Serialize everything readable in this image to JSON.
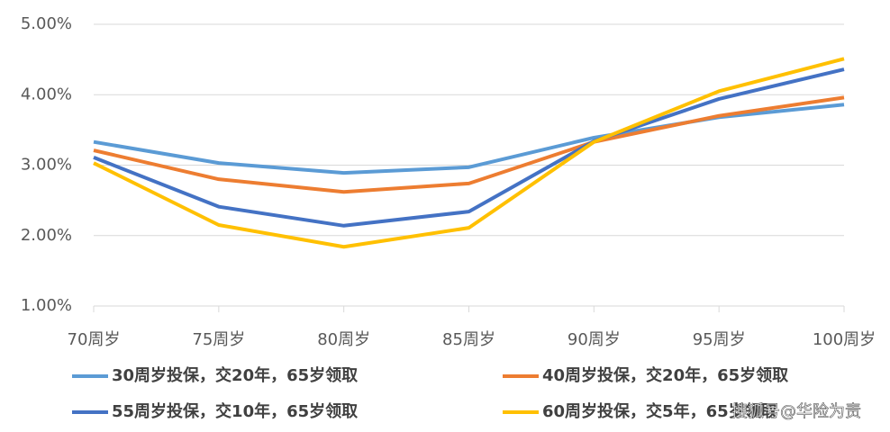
{
  "chart_data": {
    "type": "line",
    "categories": [
      "70周岁",
      "75周岁",
      "80周岁",
      "85周岁",
      "90周岁",
      "95周岁",
      "100周岁"
    ],
    "series": [
      {
        "name": "30周岁投保，交20年，65岁领取",
        "color": "#5b9bd5",
        "values": [
          3.33,
          3.03,
          2.89,
          2.97,
          3.39,
          3.68,
          3.86
        ]
      },
      {
        "name": "40周岁投保，交20年，65岁领取",
        "color": "#ed7d31",
        "values": [
          3.21,
          2.8,
          2.62,
          2.74,
          3.33,
          3.7,
          3.96
        ]
      },
      {
        "name": "55周岁投保，交10年，65岁领取",
        "color": "#4472c4",
        "values": [
          3.11,
          2.41,
          2.14,
          2.34,
          3.34,
          3.94,
          4.36
        ]
      },
      {
        "name": "60周岁投保，交5年，65岁领取",
        "color": "#ffc000",
        "values": [
          3.03,
          2.15,
          1.84,
          2.11,
          3.33,
          4.05,
          4.51
        ]
      }
    ],
    "ylim": [
      1,
      5
    ],
    "yticks": [
      {
        "value": 1,
        "label": "1.00%"
      },
      {
        "value": 2,
        "label": "2.00%"
      },
      {
        "value": 3,
        "label": "3.00%"
      },
      {
        "value": 4,
        "label": "4.00%"
      },
      {
        "value": 5,
        "label": "5.00%"
      }
    ],
    "grid": true,
    "watermark": "搜狐号@华险为责"
  }
}
